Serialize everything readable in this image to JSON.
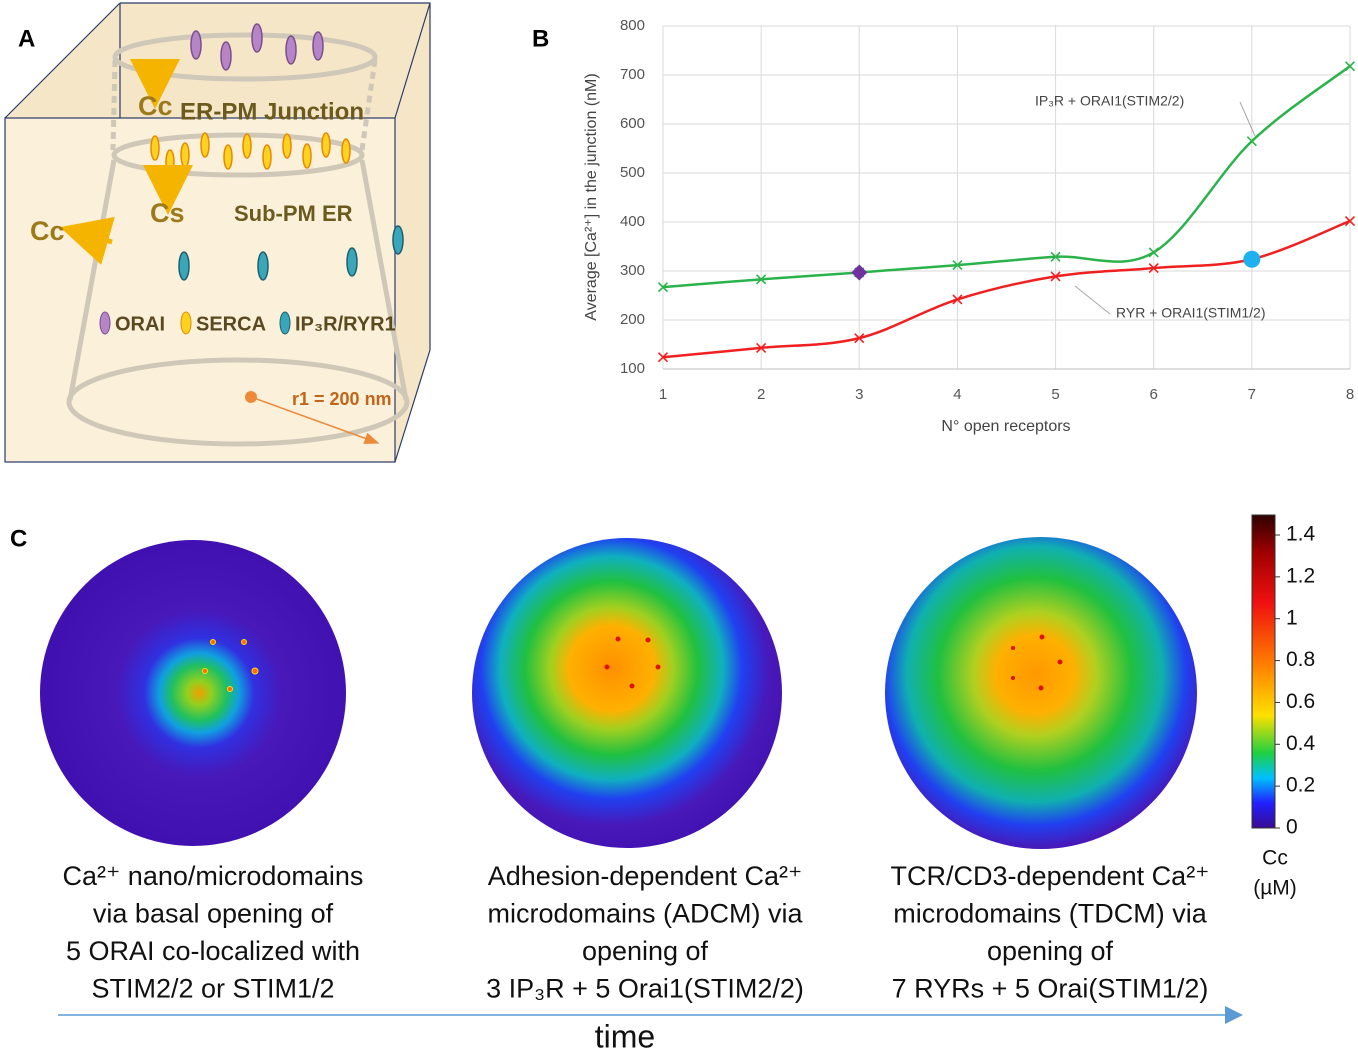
{
  "panel_a": {
    "label": "A",
    "flux_cc_top": "Cc",
    "junction": "ER-PM Junction",
    "flux_cs": "Cs",
    "sub_pm_er": "Sub-PM ER",
    "flux_cc_side": "Cc",
    "legend": [
      "ORAI",
      "SERCA",
      "IP₃R/RYR1"
    ],
    "radius": "r1 = 200 nm"
  },
  "chart_data": {
    "type": "line",
    "panel_label": "B",
    "smooth": true,
    "grid": true,
    "x_label": "N° open receptors",
    "y_label": "Average [Ca²⁺] in the junction (nM)",
    "x": [
      1,
      2,
      3,
      4,
      5,
      6,
      7,
      8
    ],
    "series": [
      {
        "name": "IP₃R + ORAI1(STIM2/2)",
        "color": "#2ab34a",
        "values": [
          267,
          283,
          297,
          312,
          329,
          338,
          565,
          718
        ]
      },
      {
        "name": "RYR + ORAI1(STIM1/2)",
        "color": "#f02020",
        "values": [
          124,
          143,
          163,
          242,
          289,
          306,
          324,
          402
        ]
      }
    ],
    "highlights": [
      {
        "series": 0,
        "index": 2,
        "shape": "diamond",
        "color": "#7030a0"
      },
      {
        "series": 1,
        "index": 6,
        "shape": "circle",
        "color": "#1fb0f0"
      }
    ],
    "xlim": [
      1,
      8
    ],
    "xticks": [
      1,
      2,
      3,
      4,
      5,
      6,
      7,
      8
    ],
    "ylim": [
      100,
      800
    ],
    "yticks": [
      100,
      200,
      300,
      400,
      500,
      600,
      700,
      800
    ]
  },
  "panel_c": {
    "label": "C",
    "colorbar": {
      "title": [
        "Cc",
        "(µM)"
      ],
      "lim": [
        0,
        1.4
      ],
      "ticks": [
        0,
        0.2,
        0.4,
        0.6,
        0.8,
        1,
        1.2,
        1.4
      ]
    },
    "captions": [
      [
        "Ca²⁺ nano/microdomains",
        "via basal opening of",
        "5 ORAI co-localized with",
        "STIM2/2 or STIM1/2"
      ],
      [
        "Adhesion-dependent Ca²⁺",
        "microdomains (ADCM) via",
        "opening of",
        "3 IP₃R + 5 Orai1(STIM2/2)"
      ],
      [
        "TCR/CD3-dependent Ca²⁺",
        "microdomains (TDCM) via",
        "opening of",
        "7 RYRs + 5 Orai(STIM1/2)"
      ]
    ],
    "time_axis": "time"
  }
}
